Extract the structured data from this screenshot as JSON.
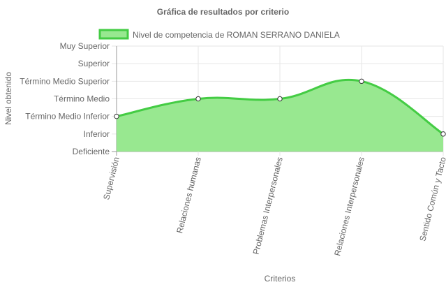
{
  "chart_data": {
    "type": "area",
    "title": "Gráfica de resultados por criterio",
    "xlabel": "Criterios",
    "ylabel": "Nivel obtenido",
    "categories": [
      "Supervisión",
      "Relaciones humanas",
      "Problemas Interpersonales",
      "Relaciones Interpersonales",
      "Sentido Común y Tacto"
    ],
    "y_levels": [
      "Deficiente",
      "Inferior",
      "Término Medio Inferior",
      "Término Medio",
      "Término Medio Superior",
      "Superior",
      "Muy Superior"
    ],
    "series": [
      {
        "name": "Nivel de competencia de ROMAN SERRANO DANIELA",
        "values": [
          2,
          3,
          3,
          4,
          1
        ]
      }
    ],
    "ylim": [
      0,
      6
    ],
    "grid": true,
    "legend_position": "top",
    "colors": {
      "fill": "#98e890",
      "line": "#44cc44",
      "point_fill": "#ffffff",
      "point_stroke": "#333333",
      "grid": "#e6e6e6",
      "axis": "#999999",
      "text": "#666666"
    }
  }
}
